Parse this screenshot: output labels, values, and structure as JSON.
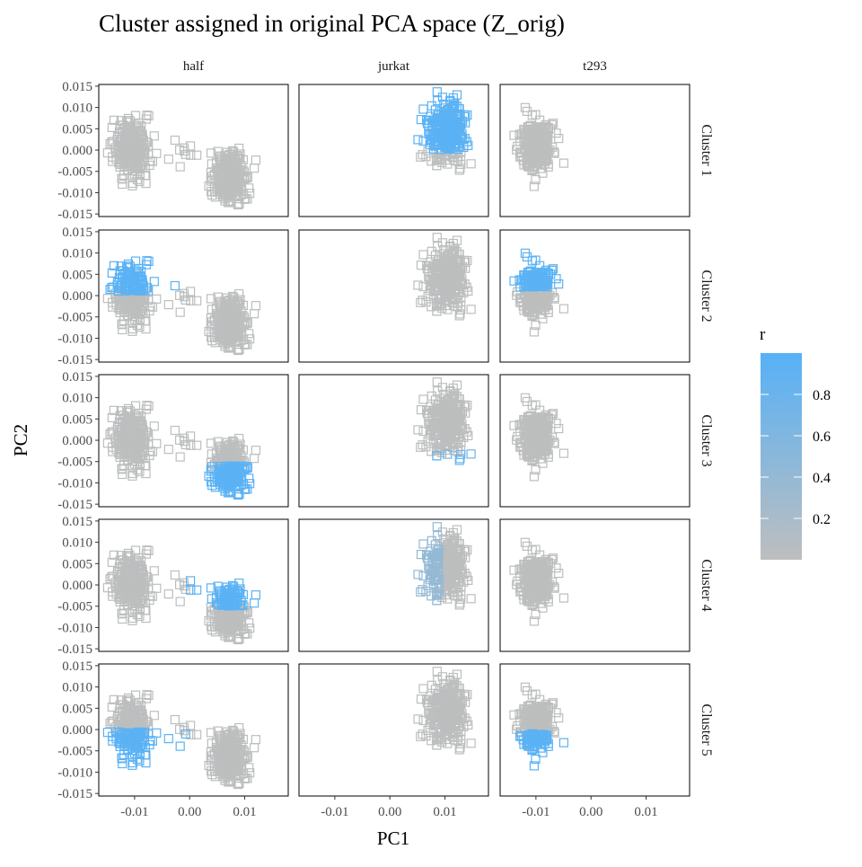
{
  "chart_data": {
    "type": "scatter",
    "title": "Cluster assigned in original PCA space (Z_orig)",
    "xlabel": "PC1",
    "ylabel": "PC2",
    "xlim": [
      -0.0165,
      0.0179
    ],
    "ylim": [
      -0.0156,
      0.0154
    ],
    "x_ticks": [
      {
        "v": -0.01,
        "label": "-0.01"
      },
      {
        "v": 0.0,
        "label": "0.00"
      },
      {
        "v": 0.01,
        "label": "0.01"
      }
    ],
    "y_ticks": [
      {
        "v": 0.015,
        "label": "0.015"
      },
      {
        "v": 0.01,
        "label": "0.010"
      },
      {
        "v": 0.005,
        "label": "0.005"
      },
      {
        "v": 0.0,
        "label": "0.000"
      },
      {
        "v": -0.005,
        "label": "-0.005"
      },
      {
        "v": -0.01,
        "label": "-0.010"
      },
      {
        "v": -0.015,
        "label": "-0.015"
      }
    ],
    "grid": false,
    "marker": "open-square",
    "columns": [
      "half",
      "jurkat",
      "t293"
    ],
    "rows": [
      "Cluster 1",
      "Cluster 2",
      "Cluster 3",
      "Cluster 4",
      "Cluster 5"
    ],
    "legend": {
      "title": "r",
      "position": "right",
      "low_color": "#bebebe",
      "high_color": "#56b1f7",
      "range": [
        0.0,
        1.0
      ],
      "ticks": [
        {
          "v": 0.2,
          "label": "0.2"
        },
        {
          "v": 0.4,
          "label": "0.4"
        },
        {
          "v": 0.6,
          "label": "0.6"
        },
        {
          "v": 0.8,
          "label": "0.8"
        }
      ]
    },
    "point_clouds": {
      "half": [
        {
          "cx": -0.0105,
          "cy": 0.0005,
          "sx": 0.0016,
          "sy": 0.0033,
          "n": 260
        },
        {
          "cx": 0.0072,
          "cy": -0.0062,
          "sx": 0.0015,
          "sy": 0.003,
          "n": 260
        },
        {
          "cx": -0.001,
          "cy": 0.0005,
          "sx": 0.002,
          "sy": 0.002,
          "n": 10
        }
      ],
      "jurkat": [
        {
          "cx": 0.0105,
          "cy": 0.004,
          "sx": 0.0017,
          "sy": 0.0033,
          "n": 320
        }
      ],
      "t293": [
        {
          "cx": -0.01,
          "cy": 0.0012,
          "sx": 0.0014,
          "sy": 0.0032,
          "n": 260
        }
      ]
    },
    "highlight": [
      {
        "row": "Cluster 1",
        "col": "half",
        "region": {
          "ymin": 0.002,
          "xmin": 0.0
        },
        "r": 0.9
      },
      {
        "row": "Cluster 1",
        "col": "jurkat",
        "region": {
          "ymin": 0.0
        },
        "r": 0.95
      },
      {
        "row": "Cluster 2",
        "col": "half",
        "region": {
          "ymin": 0.001,
          "xmax": 0.0
        },
        "r": 0.95
      },
      {
        "row": "Cluster 2",
        "col": "t293",
        "region": {
          "ymin": 0.002
        },
        "r": 0.95
      },
      {
        "row": "Cluster 3",
        "col": "half",
        "region": {
          "ymax": -0.006,
          "xmin": 0.0
        },
        "r": 0.95
      },
      {
        "row": "Cluster 3",
        "col": "jurkat",
        "region": {
          "ymax": -0.003
        },
        "r": 0.8
      },
      {
        "row": "Cluster 4",
        "col": "half",
        "region": {
          "ymin": -0.005,
          "xmin": 0.0
        },
        "r": 0.95
      },
      {
        "row": "Cluster 4",
        "col": "jurkat",
        "region": {
          "xmax": 0.009
        },
        "r": 0.4
      },
      {
        "row": "Cluster 5",
        "col": "half",
        "region": {
          "ymax": -0.0005,
          "xmax": 0.0
        },
        "r": 0.95
      },
      {
        "row": "Cluster 5",
        "col": "t293",
        "region": {
          "ymax": -0.001
        },
        "r": 0.95
      }
    ]
  }
}
